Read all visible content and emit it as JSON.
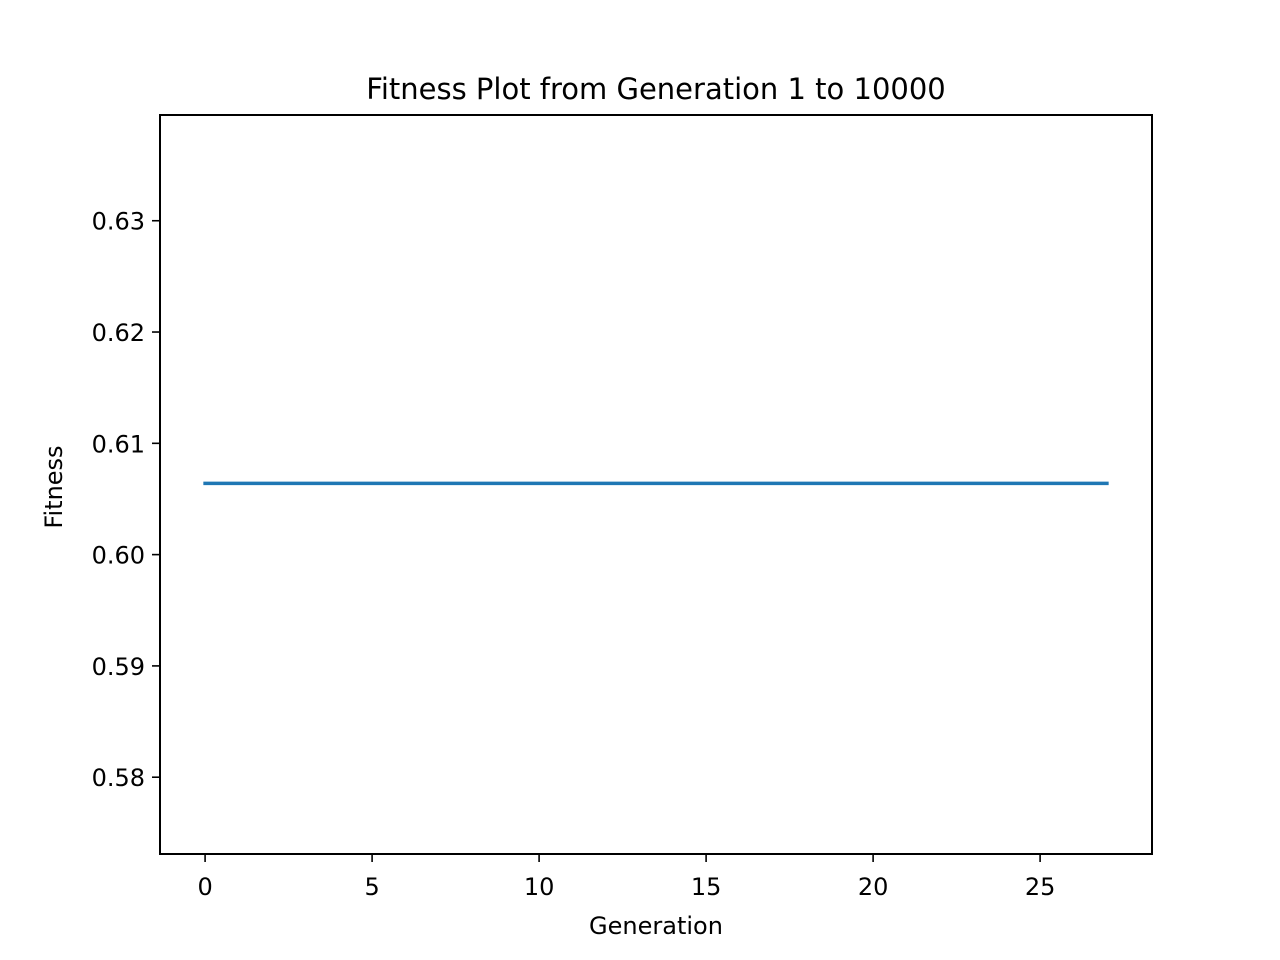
{
  "chart_data": {
    "type": "line",
    "title": "Fitness Plot from Generation 1 to 10000",
    "xlabel": "Generation",
    "ylabel": "Fitness",
    "xlim": [
      -1.35,
      28.35
    ],
    "ylim": [
      0.5731,
      0.6395
    ],
    "xticks": [
      0,
      5,
      10,
      15,
      20,
      25
    ],
    "yticks": [
      0.58,
      0.59,
      0.6,
      0.61,
      0.62,
      0.63
    ],
    "xtick_labels": [
      "0",
      "5",
      "10",
      "15",
      "20",
      "25"
    ],
    "ytick_labels": [
      "0.58",
      "0.59",
      "0.60",
      "0.61",
      "0.62",
      "0.63"
    ],
    "grid": false,
    "series": [
      {
        "color": "#1f77b4",
        "x": [
          0,
          1,
          2,
          3,
          4,
          5,
          6,
          7,
          8,
          9,
          10,
          11,
          12,
          13,
          14,
          15,
          16,
          17,
          18,
          19,
          20,
          21,
          22,
          23,
          24,
          25,
          26,
          27
        ],
        "y": [
          0.6064,
          0.6064,
          0.6064,
          0.6064,
          0.6064,
          0.6064,
          0.6064,
          0.6064,
          0.6064,
          0.6064,
          0.6064,
          0.6064,
          0.6064,
          0.6064,
          0.6064,
          0.6064,
          0.6064,
          0.6064,
          0.6064,
          0.6064,
          0.6064,
          0.6064,
          0.6064,
          0.6064,
          0.6064,
          0.6064,
          0.6064,
          0.6064
        ]
      }
    ]
  }
}
